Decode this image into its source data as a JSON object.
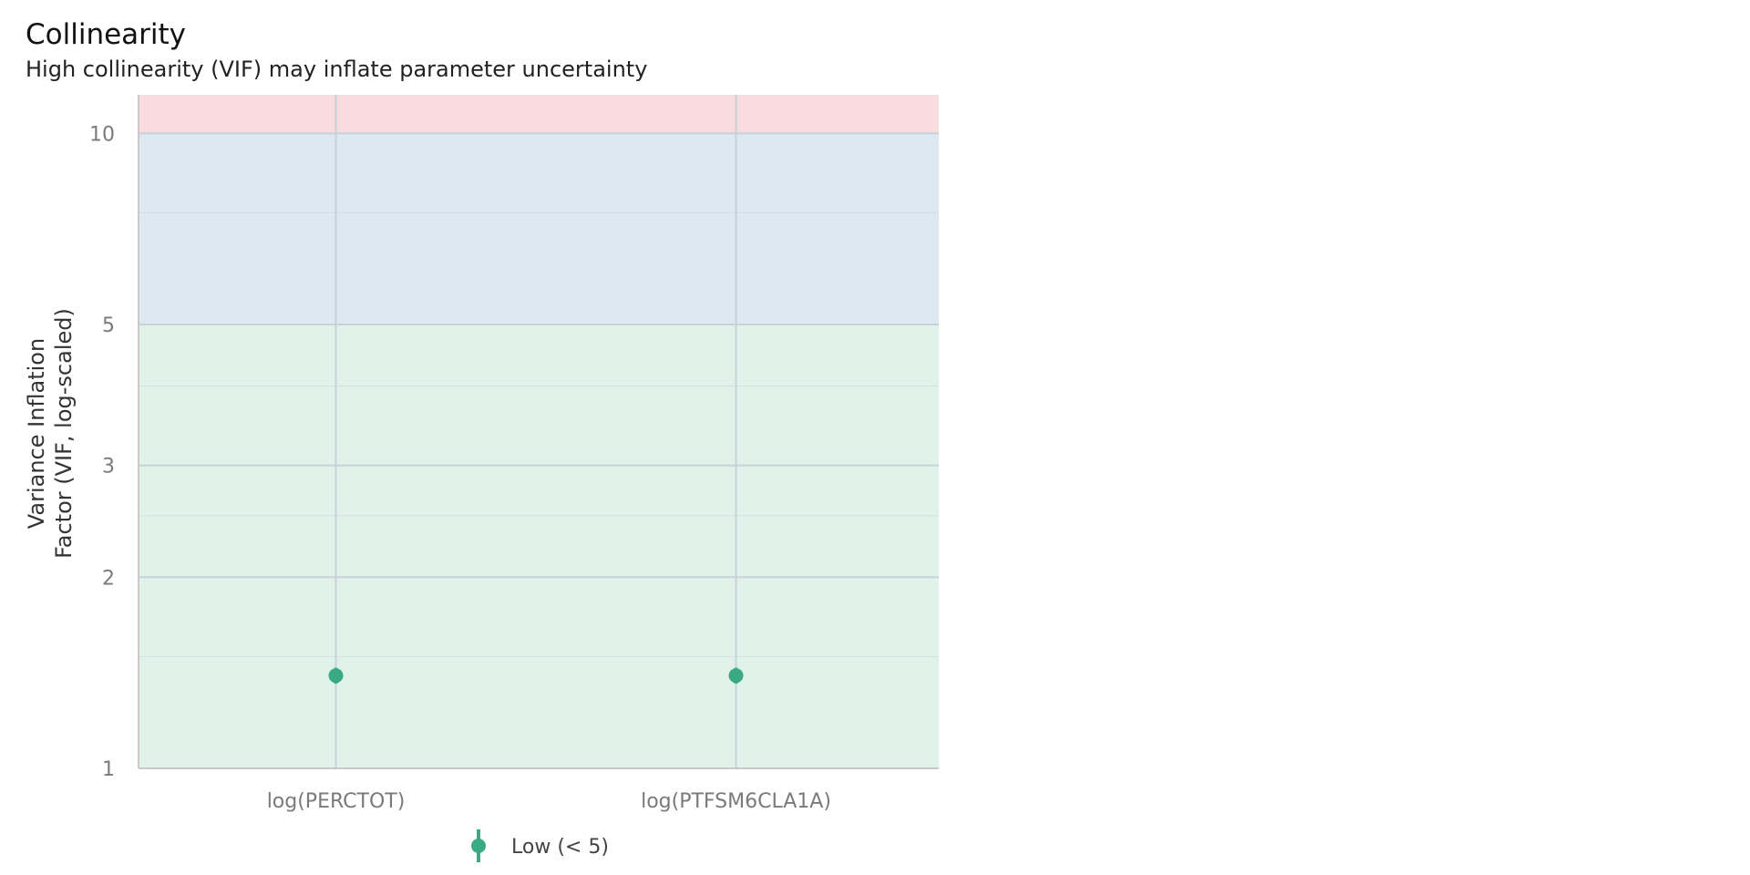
{
  "title": "Collinearity",
  "subtitle": "High collinearity (VIF) may inflate parameter uncertainty",
  "chart_data": {
    "type": "scatter",
    "categories": [
      "log(PERCTOT)",
      "log(PTFSM6CLA1A)"
    ],
    "series": [
      {
        "name": "Low (< 5)",
        "color": "#3aaa85",
        "values": [
          1.4,
          1.4
        ],
        "ci_low": [
          1.36,
          1.36
        ],
        "ci_high": [
          1.44,
          1.44
        ]
      }
    ],
    "ylabel": "Variance Inflation Factor (VIF, log-scaled)",
    "ylabel_lines": [
      "Variance Inflation",
      "Factor (VIF, log-scaled)"
    ],
    "xlabel": "",
    "y_scale": "log",
    "ylim": [
      1,
      11.5
    ],
    "y_ticks": [
      1,
      2,
      3,
      5,
      10
    ],
    "y_tick_labels": [
      "1",
      "2",
      "3",
      "5",
      "10"
    ],
    "y_minor_ticks": [
      1.5,
      2.5,
      4,
      7.5
    ],
    "grid": true,
    "legend_position": "bottom",
    "bands": [
      {
        "from": 1,
        "to": 5,
        "color": "#e1f2eb"
      },
      {
        "from": 5,
        "to": 10,
        "color": "#dde8f1"
      },
      {
        "from": 10,
        "to": 11.5,
        "color": "#f9dcdd"
      }
    ]
  }
}
